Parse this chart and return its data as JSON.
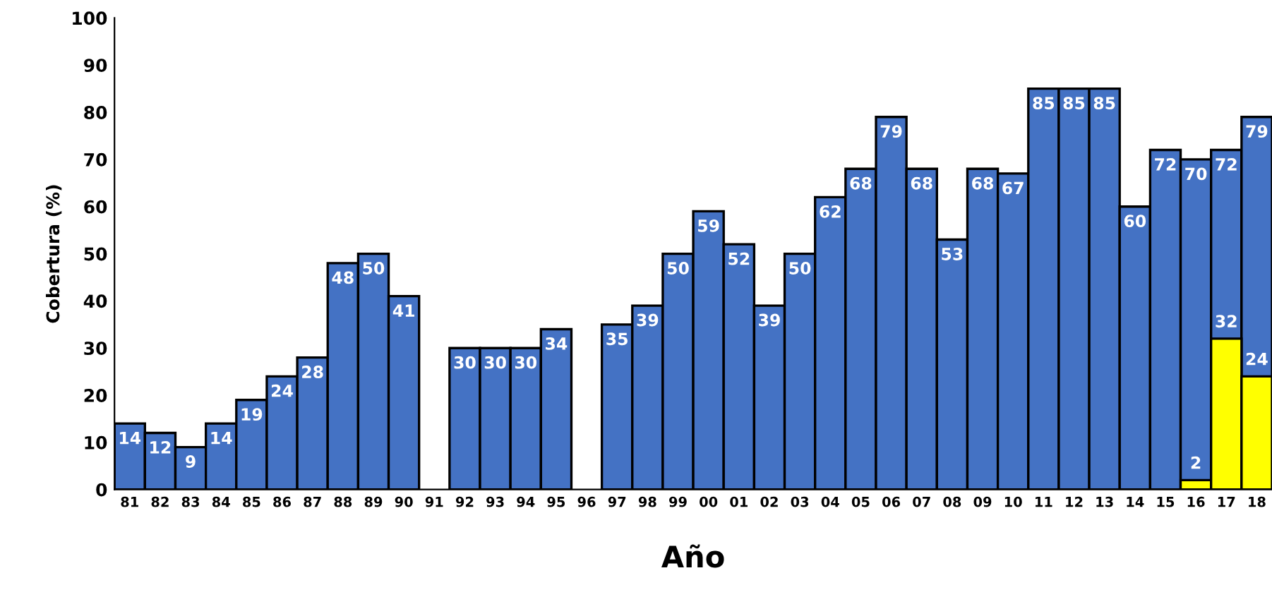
{
  "chart_data": {
    "type": "bar",
    "xlabel": "Año",
    "ylabel": "Cobertura (%)",
    "categories": [
      "81",
      "82",
      "83",
      "84",
      "85",
      "86",
      "87",
      "88",
      "89",
      "90",
      "91",
      "92",
      "93",
      "94",
      "95",
      "96",
      "97",
      "98",
      "99",
      "00",
      "01",
      "02",
      "03",
      "04",
      "05",
      "06",
      "07",
      "08",
      "09",
      "10",
      "11",
      "12",
      "13",
      "14",
      "15",
      "16",
      "17",
      "18"
    ],
    "series": [
      {
        "color": "#4472c4",
        "values": [
          14,
          12,
          9,
          14,
          19,
          24,
          28,
          48,
          50,
          41,
          null,
          30,
          30,
          30,
          34,
          null,
          35,
          39,
          50,
          59,
          52,
          39,
          50,
          62,
          68,
          79,
          68,
          53,
          68,
          67,
          85,
          85,
          85,
          60,
          72,
          70,
          72,
          79
        ]
      },
      {
        "color": "#ffff00",
        "values": [
          null,
          null,
          null,
          null,
          null,
          null,
          null,
          null,
          null,
          null,
          null,
          null,
          null,
          null,
          null,
          null,
          null,
          null,
          null,
          null,
          null,
          null,
          null,
          null,
          null,
          null,
          null,
          null,
          null,
          null,
          null,
          null,
          null,
          null,
          null,
          2,
          32,
          24
        ]
      }
    ],
    "ylim": [
      0,
      100
    ],
    "yticks": [
      0,
      10,
      20,
      30,
      40,
      50,
      60,
      70,
      80,
      90,
      100
    ],
    "grid": false,
    "legend": false,
    "data_labels": true
  }
}
